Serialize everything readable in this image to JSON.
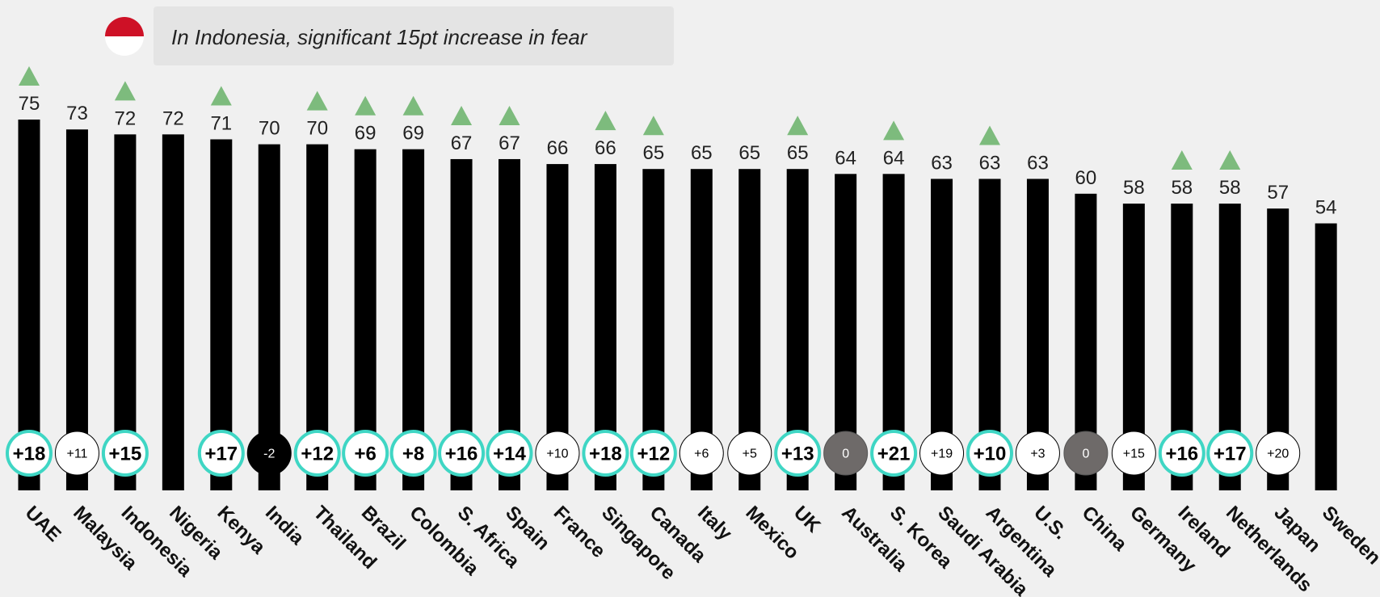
{
  "chart_data": {
    "type": "bar",
    "annotation": "In Indonesia, significant 15pt increase in fear",
    "categories": [
      "UAE",
      "Malaysia",
      "Indonesia",
      "Nigeria",
      "Kenya",
      "India",
      "Thailand",
      "Brazil",
      "Colombia",
      "S. Africa",
      "Spain",
      "France",
      "Singapore",
      "Canada",
      "Italy",
      "Mexico",
      "UK",
      "Australia",
      "S. Korea",
      "Saudi Arabia",
      "Argentina",
      "U.S.",
      "China",
      "Germany",
      "Ireland",
      "Netherlands",
      "Japan",
      "Sweden"
    ],
    "values": [
      75,
      73,
      72,
      72,
      71,
      70,
      70,
      69,
      69,
      67,
      67,
      66,
      66,
      65,
      65,
      65,
      65,
      64,
      64,
      63,
      63,
      63,
      60,
      58,
      58,
      58,
      57,
      54
    ],
    "color": "#000000",
    "changes": [
      18,
      11,
      15,
      null,
      17,
      -2,
      12,
      6,
      8,
      16,
      14,
      10,
      18,
      12,
      6,
      5,
      13,
      0,
      21,
      19,
      10,
      3,
      0,
      15,
      16,
      17,
      20,
      null
    ],
    "change_labels": [
      "+18",
      "+11",
      "+15",
      null,
      "+17",
      "-2",
      "+12",
      "+6",
      "+8",
      "+16",
      "+14",
      "+10",
      "+18",
      "+12",
      "+6",
      "+5",
      "+13",
      "0",
      "+21",
      "+19",
      "+10",
      "+3",
      "0",
      "+15",
      "+16",
      "+17",
      "+20",
      null
    ],
    "significant": [
      true,
      false,
      true,
      false,
      true,
      false,
      true,
      true,
      true,
      true,
      true,
      false,
      true,
      true,
      false,
      false,
      true,
      false,
      true,
      false,
      true,
      false,
      false,
      false,
      true,
      true,
      false,
      false
    ],
    "significant_color": "#7dbb7d",
    "ring_color": "#3fd6c4"
  }
}
